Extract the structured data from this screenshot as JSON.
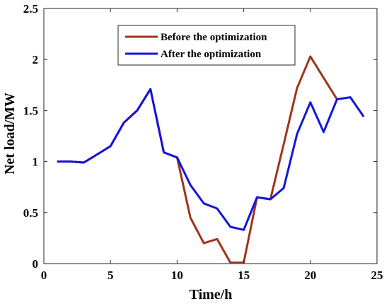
{
  "chart_data": {
    "type": "line",
    "xlabel": "Time/h",
    "ylabel": "Net load/MW",
    "xlim": [
      0,
      25
    ],
    "ylim": [
      0,
      2.5
    ],
    "xticks": [
      0,
      5,
      10,
      15,
      20,
      25
    ],
    "yticks": [
      0,
      0.5,
      1,
      1.5,
      2,
      2.5
    ],
    "xtick_labels": [
      "0",
      "5",
      "10",
      "15",
      "20",
      "25"
    ],
    "ytick_labels": [
      "0",
      "0.5",
      "1",
      "1.5",
      "2",
      "2.5"
    ],
    "grid": false,
    "legend_position": "top-center",
    "series": [
      {
        "name": "Before the optimization",
        "color": "#a0341a",
        "x": [
          1,
          2,
          3,
          4,
          5,
          6,
          7,
          8,
          9,
          10,
          11,
          12,
          13,
          14,
          15,
          16,
          17,
          18,
          19,
          20,
          21,
          22
        ],
        "y": [
          1.0,
          1.0,
          0.99,
          1.07,
          1.15,
          1.38,
          1.5,
          1.71,
          1.09,
          1.04,
          0.45,
          0.2,
          0.24,
          0.01,
          0.01,
          0.65,
          0.63,
          1.17,
          1.72,
          2.03,
          1.82,
          1.61
        ]
      },
      {
        "name": "After the optimization",
        "color": "#1414dc",
        "x": [
          1,
          2,
          3,
          4,
          5,
          6,
          7,
          8,
          9,
          10,
          11,
          12,
          13,
          14,
          15,
          16,
          17,
          18,
          19,
          20,
          21,
          22,
          23,
          24
        ],
        "y": [
          1.0,
          1.0,
          0.99,
          1.07,
          1.15,
          1.38,
          1.5,
          1.71,
          1.09,
          1.04,
          0.77,
          0.59,
          0.54,
          0.36,
          0.33,
          0.65,
          0.63,
          0.74,
          1.27,
          1.58,
          1.29,
          1.61,
          1.63,
          1.44
        ]
      }
    ]
  }
}
